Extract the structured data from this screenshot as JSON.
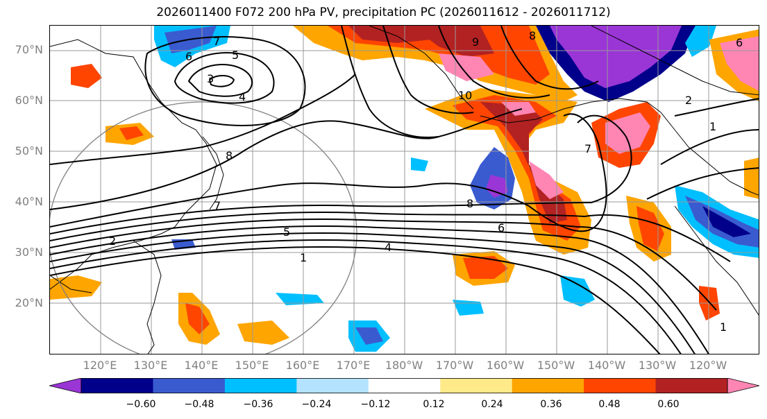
{
  "title": "2026011400 F072 200 hPa PV, precipitation PC (2026011612 - 2026011712)",
  "lat_labels": [
    "70°N",
    "60°N",
    "50°N",
    "40°N",
    "30°N",
    "20°N"
  ],
  "lon_labels": [
    "120°E",
    "130°E",
    "140°E",
    "150°E",
    "160°E",
    "170°E",
    "180°W",
    "170°W",
    "160°W",
    "150°W",
    "140°W",
    "130°W",
    "120°W"
  ],
  "colorbar": {
    "ticks": [
      "−0.60",
      "−0.48",
      "−0.36",
      "−0.24",
      "−0.12",
      "0.12",
      "0.24",
      "0.36",
      "0.48",
      "0.60"
    ],
    "colors": [
      "#9a35d6",
      "#00008b",
      "#3a5bd0",
      "#00bfff",
      "#b3e3ff",
      "#ffffff",
      "#ffea8a",
      "#ffa500",
      "#ff4500",
      "#b22222",
      "#ff85b3"
    ]
  },
  "contour_labels": [
    "5",
    "3",
    "4",
    "6",
    "7",
    "9",
    "8",
    "10",
    "2",
    "1",
    "8",
    "7",
    "5",
    "4",
    "1",
    "8",
    "6",
    "7",
    "2",
    "1",
    "6"
  ],
  "palette": {
    "purple": "#9a35d6",
    "navy": "#00008b",
    "blue": "#3a5bd0",
    "cyan": "#00bfff",
    "lightblue": "#b3e3ff",
    "yellow": "#ffea8a",
    "orange": "#ffa500",
    "redorange": "#ff4500",
    "darkred": "#b22222",
    "pink": "#ff85b3"
  }
}
